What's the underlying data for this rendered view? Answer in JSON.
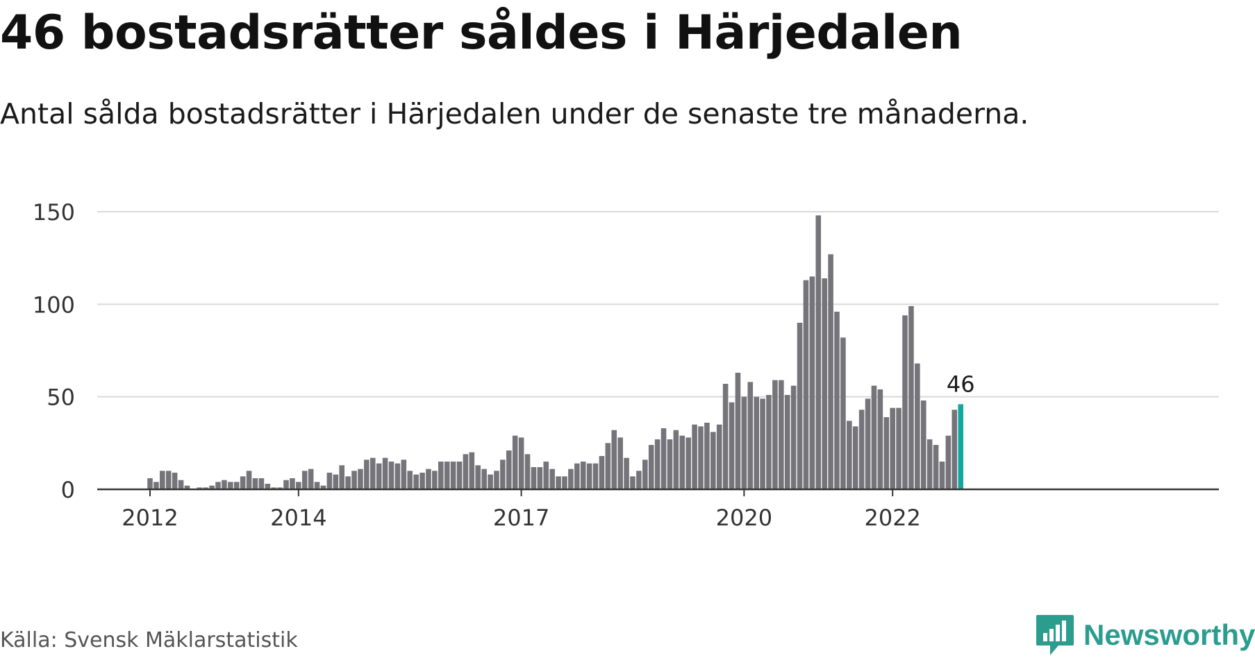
{
  "title": "46 bostadsrätter såldes i Härjedalen",
  "subtitle": "Antal sålda bostadsrätter i Härjedalen under de senaste tre månaderna.",
  "source": "Källa: Svensk Mäklarstatistik",
  "brand": {
    "name": "Newsworthy",
    "icon": "newsworthy-logo-icon",
    "color": "#2a9d8f"
  },
  "colors": {
    "bar": "#75747a",
    "highlight": "#13a89e",
    "grid": "#d9d9d9",
    "axis": "#333333"
  },
  "chart_data": {
    "type": "bar",
    "title": "46 bostadsrätter såldes i Härjedalen",
    "xlabel": "",
    "ylabel": "",
    "ylim": [
      0,
      150
    ],
    "yticks": [
      0,
      50,
      100,
      150
    ],
    "xticks": [
      {
        "label": "2012",
        "index": 0
      },
      {
        "label": "2014",
        "index": 24
      },
      {
        "label": "2017",
        "index": 60
      },
      {
        "label": "2020",
        "index": 96
      },
      {
        "label": "2022",
        "index": 120
      }
    ],
    "grid": true,
    "legend": "none",
    "highlight_label": "46",
    "values": [
      6,
      4,
      10,
      10,
      9,
      5,
      2,
      0,
      1,
      1,
      2,
      4,
      5,
      4,
      4,
      7,
      10,
      6,
      6,
      3,
      1,
      1,
      5,
      6,
      4,
      10,
      11,
      4,
      2,
      9,
      8,
      13,
      7,
      10,
      11,
      16,
      17,
      14,
      17,
      15,
      14,
      16,
      10,
      8,
      9,
      11,
      10,
      15,
      15,
      15,
      15,
      19,
      20,
      13,
      11,
      8,
      10,
      16,
      21,
      29,
      28,
      19,
      12,
      12,
      15,
      11,
      7,
      7,
      11,
      14,
      15,
      14,
      14,
      18,
      25,
      32,
      28,
      17,
      7,
      10,
      16,
      24,
      27,
      33,
      27,
      32,
      29,
      28,
      35,
      34,
      36,
      31,
      35,
      57,
      47,
      63,
      50,
      58,
      50,
      49,
      51,
      59,
      59,
      51,
      56,
      90,
      113,
      115,
      148,
      114,
      127,
      96,
      82,
      37,
      34,
      43,
      49,
      56,
      54,
      39,
      44,
      44,
      94,
      99,
      68,
      48,
      27,
      24,
      15,
      29,
      43,
      46
    ]
  }
}
